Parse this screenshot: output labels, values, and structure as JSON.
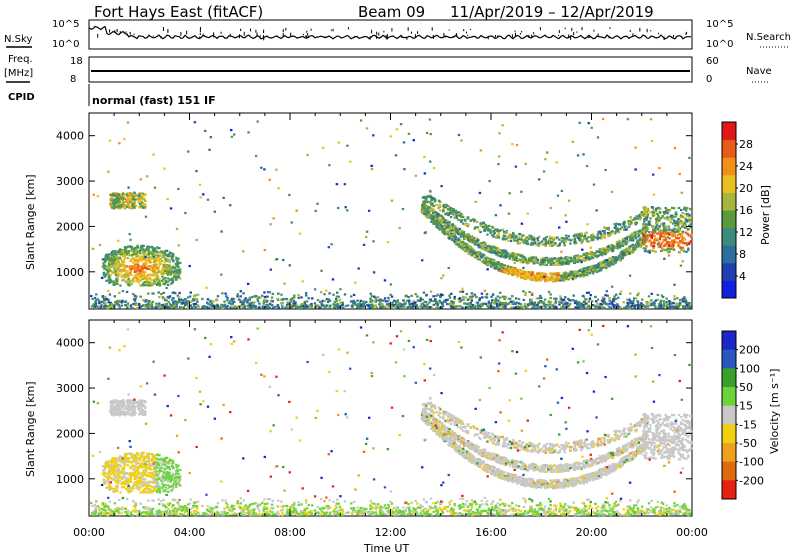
{
  "header": {
    "station": "Fort Hays East (fitACF)",
    "beam": "Beam 09",
    "date_range": "11/Apr/2019 – 12/Apr/2019"
  },
  "side_labels": {
    "nsky": "N.Sky",
    "nsky_ticks": [
      "10^5",
      "10^0"
    ],
    "nsearch": "N.Search",
    "nsearch_ticks": [
      "10^5",
      "10^0"
    ],
    "freq": "Freq.",
    "freq_unit": "[MHz]",
    "freq_ticks": [
      "18",
      "8"
    ],
    "nave": "Nave",
    "nave_ticks": [
      "60",
      "0"
    ],
    "cpid": "CPID",
    "cpid_text": "normal (fast) 151 IF"
  },
  "colors": {
    "power_scale": [
      "#1020e0",
      "#2040b0",
      "#2c6e9c",
      "#3c8c7c",
      "#5a9a3c",
      "#a8b43c",
      "#e8c020",
      "#f09018",
      "#e85a18",
      "#e01818"
    ],
    "velocity_scale": [
      "#1a28c8",
      "#2a58c0",
      "#3aa02a",
      "#6ad43a",
      "#c8c8c8",
      "#f0d010",
      "#f0a020",
      "#e06a10",
      "#e82010"
    ]
  },
  "chart_data": [
    {
      "type": "heatmap",
      "title": "",
      "xlabel": "Time UT",
      "ylabel": "Slant Range [km]",
      "x_ticks": [
        "00:00",
        "04:00",
        "08:00",
        "12:00",
        "16:00",
        "20:00",
        "00:00"
      ],
      "y_ticks": [
        1000,
        2000,
        3000,
        4000
      ],
      "colorbar": {
        "label": "Power [dB]",
        "ticks": [
          4,
          8,
          12,
          16,
          20,
          24,
          28
        ]
      },
      "regions": [
        {
          "t_start": 0.5,
          "t_end": 3.6,
          "range_start": 700,
          "range_end": 1600,
          "peak_power": 26
        },
        {
          "t_start": 0.8,
          "t_end": 2.2,
          "range_start": 2400,
          "range_end": 2750,
          "peak_power": 22
        },
        {
          "t_start": 13.2,
          "t_end": 22.0,
          "range_start": 750,
          "range_end": 2600,
          "peak_power": 22
        },
        {
          "t_start": 22.0,
          "t_end": 24.0,
          "range_start": 1400,
          "range_end": 2500,
          "peak_power": 28
        }
      ]
    },
    {
      "type": "heatmap",
      "title": "",
      "xlabel": "Time UT",
      "ylabel": "Slant Range [km]",
      "x_ticks": [
        "00:00",
        "04:00",
        "08:00",
        "12:00",
        "16:00",
        "20:00",
        "00:00"
      ],
      "y_ticks": [
        1000,
        2000,
        3000,
        4000
      ],
      "colorbar": {
        "label": "Velocity [m s⁻¹]",
        "ticks": [
          200,
          100,
          50,
          15,
          -15,
          -50,
          -100,
          -200
        ]
      }
    }
  ]
}
